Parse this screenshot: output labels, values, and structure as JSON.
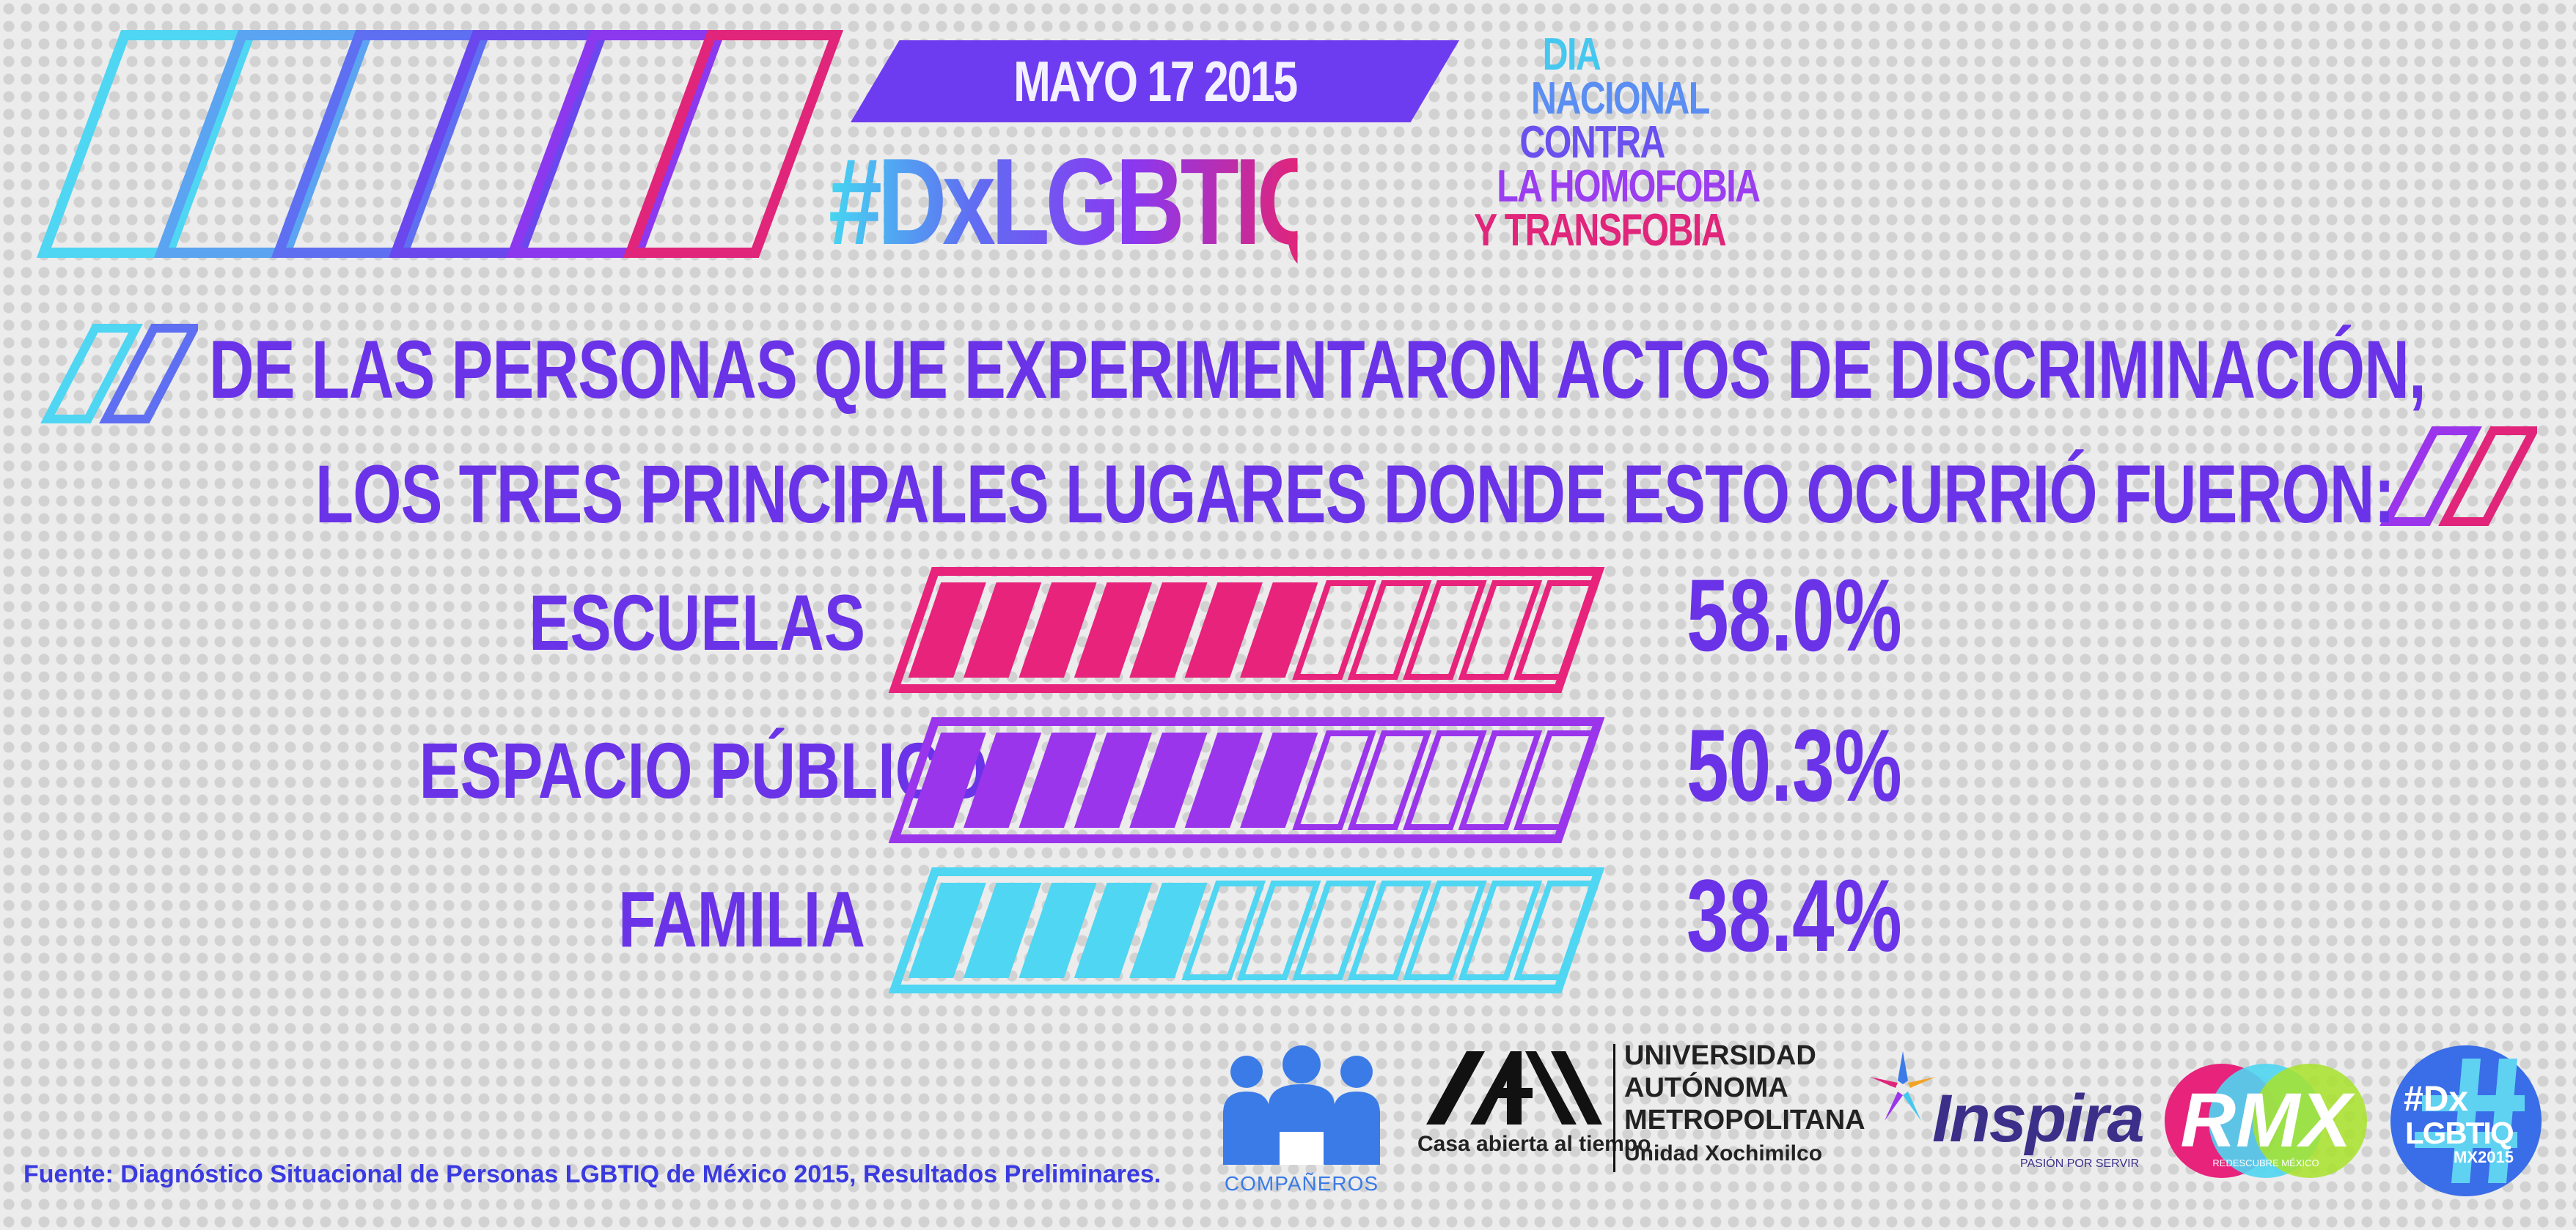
{
  "header": {
    "date": "MAYO 17 2015",
    "hashtag": "#DxLGBTIQMx",
    "dia_lines": [
      {
        "text": "DIA",
        "color": "#45c8f0"
      },
      {
        "text": "NACIONAL",
        "color": "#5b8ef2"
      },
      {
        "text": "CONTRA",
        "color": "#6a50ee"
      },
      {
        "text": "LA HOMOFOBIA",
        "color": "#9a3ef0"
      },
      {
        "text": "Y TRANSFOBIA",
        "color": "#e0257a"
      }
    ]
  },
  "headline": {
    "line1": "DE LAS PERSONAS QUE EXPERIMENTARON ACTOS DE DISCRIMINACIÓN,",
    "line2": "LOS TRES PRINCIPALES LUGARES DONDE ESTO OCURRIÓ FUERON:"
  },
  "chart_data": {
    "type": "bar",
    "categories": [
      "ESCUELAS",
      "ESPACIO PÚBLICO",
      "FAMILIA"
    ],
    "values": [
      58.0,
      50.3,
      38.4
    ],
    "value_labels": [
      "58.0%",
      "50.3%",
      "38.4%"
    ],
    "colors": [
      "#e8237c",
      "#9a35ec",
      "#4fd6f2"
    ],
    "ylim": [
      0,
      100
    ],
    "segments": 12
  },
  "footer": {
    "source": "Fuente: Diagnóstico Situacional de Personas LGBTIQ de México 2015, Resultados Preliminares.",
    "logos": {
      "companeros": "COMPAÑEROS",
      "uam_tagline": "Casa abierta al tiempo",
      "uam_name_1": "UNIVERSIDAD",
      "uam_name_2": "AUTÓNOMA",
      "uam_name_3": "METROPOLITANA",
      "uam_unit": "Unidad Xochimilco",
      "inspira": "Inspira",
      "inspira_tagline": "PASIÓN POR SERVIR",
      "rmx": "RMX",
      "rmx_tagline": "REDESCUBRE MÉXICO",
      "dx_badge_1": "#Dx",
      "dx_badge_2": "LGBTIQ",
      "dx_badge_3": "MX2015"
    }
  }
}
